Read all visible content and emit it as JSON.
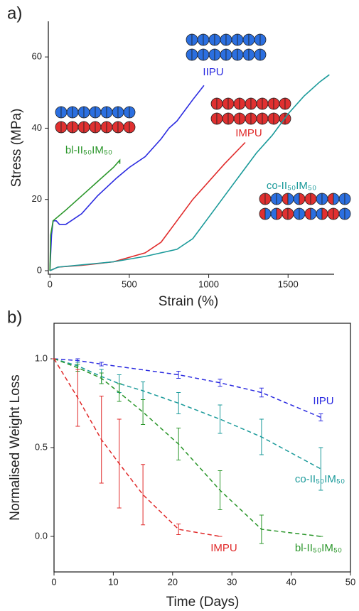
{
  "chart_data": [
    {
      "type": "line",
      "panel": "a)",
      "x_label": "Strain (%)",
      "y_label": "Stress (MPa)",
      "xlim": [
        -10,
        1790
      ],
      "ylim": [
        -1,
        70
      ],
      "xticks": [
        0,
        500,
        1000,
        1500
      ],
      "yticks": [
        0,
        20,
        40,
        60
      ],
      "series": [
        {
          "name": "IIPU",
          "color": "#2b2be0",
          "x": [
            0,
            10,
            20,
            40,
            60,
            100,
            200,
            300,
            420,
            500,
            600,
            700,
            750,
            800,
            900,
            970
          ],
          "values": [
            0,
            10,
            14,
            14,
            13,
            13,
            16,
            21,
            26,
            29,
            32,
            37,
            40,
            42,
            48,
            52
          ]
        },
        {
          "name": "bl-II₅₀IM₅₀",
          "color": "#2a962a",
          "x": [
            0,
            5,
            20,
            100,
            200,
            300,
            400,
            440,
            440
          ],
          "values": [
            0,
            10,
            14,
            17,
            21,
            25,
            29,
            31,
            30
          ]
        },
        {
          "name": "IMPU",
          "color": "#e02a2a",
          "x": [
            0,
            50,
            200,
            400,
            600,
            700,
            800,
            900,
            1000,
            1100,
            1230
          ],
          "values": [
            0,
            1,
            1.5,
            2.5,
            5,
            8,
            14,
            20,
            25,
            30,
            36
          ]
        },
        {
          "name": "co-II₅₀IM₅₀",
          "color": "#1a9a9a",
          "x": [
            0,
            50,
            400,
            600,
            800,
            900,
            1000,
            1100,
            1200,
            1300,
            1400,
            1500,
            1600,
            1700,
            1760
          ],
          "values": [
            0,
            1,
            2.5,
            4,
            6,
            9,
            15,
            21,
            27,
            33,
            38,
            44,
            49,
            53,
            55
          ]
        }
      ]
    },
    {
      "type": "errorline",
      "panel": "b)",
      "x_label": "Time (Days)",
      "y_label": "Normalised Weight Loss",
      "xlim": [
        0,
        50
      ],
      "ylim": [
        -0.2,
        1.2
      ],
      "xticks": [
        0,
        10,
        20,
        30,
        40,
        50
      ],
      "yticks": [
        {
          "value": 0,
          "label": "0.0"
        },
        {
          "value": 0.5,
          "label": "0.5"
        },
        {
          "value": 1,
          "label": "1.0"
        }
      ],
      "series": [
        {
          "name": "IIPU",
          "color": "#2b2be0",
          "x": [
            0,
            4,
            8,
            21,
            28,
            35,
            45
          ],
          "values": [
            1,
            0.99,
            0.97,
            0.91,
            0.865,
            0.81,
            0.67
          ],
          "errors": [
            0,
            0.01,
            0.01,
            0.02,
            0.02,
            0.025,
            0.02
          ]
        },
        {
          "name": "co-II₅₀IM₅₀",
          "color": "#1a9a9a",
          "x": [
            0,
            4,
            8,
            11,
            15,
            21,
            28,
            35,
            45
          ],
          "values": [
            1,
            0.96,
            0.9,
            0.86,
            0.82,
            0.75,
            0.66,
            0.56,
            0.38
          ],
          "errors": [
            0,
            0.02,
            0.04,
            0.05,
            0.05,
            0.06,
            0.08,
            0.1,
            0.12
          ]
        },
        {
          "name": "bl-II₅₀IM₅₀",
          "color": "#2a962a",
          "x": [
            0,
            4,
            8,
            11,
            15,
            21,
            28,
            35,
            45
          ],
          "values": [
            1,
            0.95,
            0.89,
            0.81,
            0.7,
            0.52,
            0.26,
            0.04,
            0
          ],
          "errors": [
            0,
            0.02,
            0.03,
            0.05,
            0.07,
            0.09,
            0.11,
            0.08,
            0
          ]
        },
        {
          "name": "IMPU",
          "color": "#e02a2a",
          "x": [
            0,
            4,
            8,
            11,
            15,
            21,
            28
          ],
          "values": [
            1,
            0.78,
            0.545,
            0.41,
            0.235,
            0.04,
            0
          ],
          "errors": [
            0,
            0.16,
            0.245,
            0.25,
            0.17,
            0.03,
            0
          ]
        }
      ]
    }
  ]
}
